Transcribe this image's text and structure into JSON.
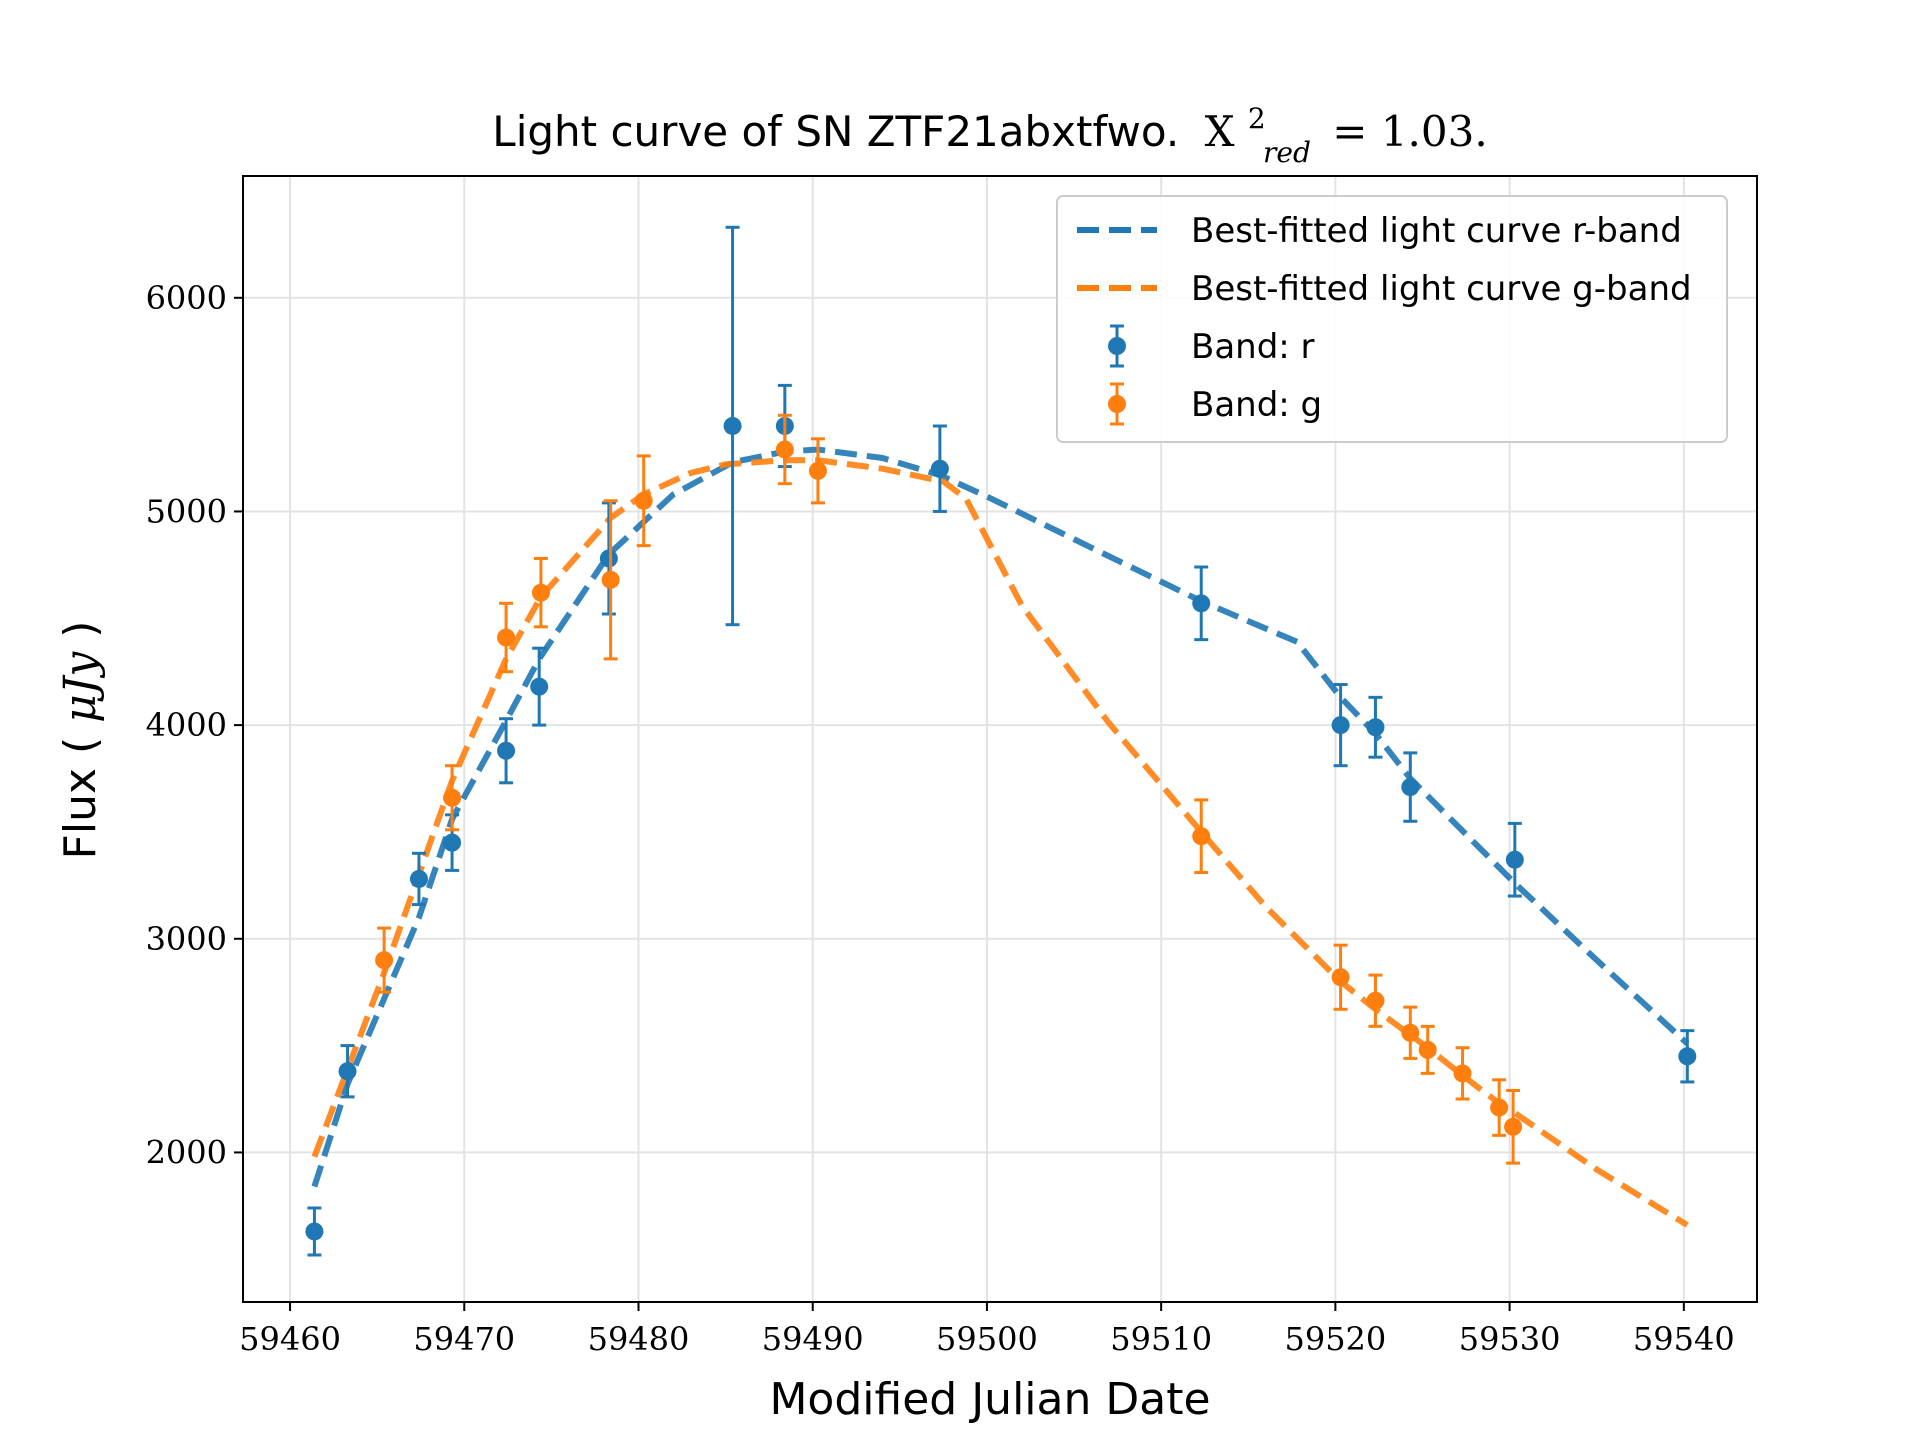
{
  "chart_data": {
    "type": "scatter",
    "title_main": "Light curve of SN ZTF21abxtfwo.",
    "title_chi_symbol": "X",
    "title_chi_sup": "2",
    "title_chi_sub": "red",
    "title_chi_value": "= 1.03.",
    "xlabel": "Modified Julian Date",
    "ylabel_text": "Flux (",
    "ylabel_unit": "μJy",
    "ylabel_close": ")",
    "xlim": [
      59457.3,
      59544.2
    ],
    "ylim": [
      1300,
      6570
    ],
    "xticks": [
      59460,
      59470,
      59480,
      59490,
      59500,
      59510,
      59520,
      59530,
      59540
    ],
    "xtick_labels": [
      "59460",
      "59470",
      "59480",
      "59490",
      "59500",
      "59510",
      "59520",
      "59530",
      "59540"
    ],
    "yticks": [
      2000,
      3000,
      4000,
      5000,
      6000
    ],
    "ytick_labels": [
      "2000",
      "3000",
      "4000",
      "5000",
      "6000"
    ],
    "grid": true,
    "legend_position": "top-right",
    "legend": [
      {
        "label": "Best-fitted light curve r-band",
        "kind": "line",
        "color": "#1f77b4"
      },
      {
        "label": "Best-fitted light curve g-band",
        "kind": "line",
        "color": "#ff7f0e"
      },
      {
        "label": "Band: r",
        "kind": "errorbar",
        "color": "#1f77b4"
      },
      {
        "label": "Band: g",
        "kind": "errorbar",
        "color": "#ff7f0e"
      }
    ],
    "series": [
      {
        "name": "Band: r",
        "kind": "errorbar",
        "color": "#1f77b4",
        "points": [
          {
            "x": 59461.4,
            "y": 1630,
            "err": 110
          },
          {
            "x": 59463.3,
            "y": 2380,
            "err": 120
          },
          {
            "x": 59467.4,
            "y": 3280,
            "err": 120
          },
          {
            "x": 59469.3,
            "y": 3450,
            "err": 130
          },
          {
            "x": 59472.4,
            "y": 3880,
            "err": 150
          },
          {
            "x": 59474.3,
            "y": 4180,
            "err": 180
          },
          {
            "x": 59478.3,
            "y": 4780,
            "err": 260
          },
          {
            "x": 59485.4,
            "y": 5400,
            "err": 930
          },
          {
            "x": 59488.4,
            "y": 5400,
            "err": 190
          },
          {
            "x": 59497.3,
            "y": 5200,
            "err": 200
          },
          {
            "x": 59512.3,
            "y": 4570,
            "err": 170
          },
          {
            "x": 59520.3,
            "y": 4000,
            "err": 190
          },
          {
            "x": 59522.3,
            "y": 3990,
            "err": 140
          },
          {
            "x": 59524.3,
            "y": 3710,
            "err": 160
          },
          {
            "x": 59530.3,
            "y": 3370,
            "err": 170
          },
          {
            "x": 59540.2,
            "y": 2450,
            "err": 120
          }
        ]
      },
      {
        "name": "Band: g",
        "kind": "errorbar",
        "color": "#ff7f0e",
        "points": [
          {
            "x": 59465.4,
            "y": 2900,
            "err": 150
          },
          {
            "x": 59469.3,
            "y": 3660,
            "err": 150
          },
          {
            "x": 59472.4,
            "y": 4410,
            "err": 160
          },
          {
            "x": 59474.4,
            "y": 4620,
            "err": 160
          },
          {
            "x": 59478.4,
            "y": 4680,
            "err": 370
          },
          {
            "x": 59480.3,
            "y": 5050,
            "err": 210
          },
          {
            "x": 59488.4,
            "y": 5290,
            "err": 160
          },
          {
            "x": 59490.3,
            "y": 5190,
            "err": 150
          },
          {
            "x": 59512.3,
            "y": 3480,
            "err": 170
          },
          {
            "x": 59520.3,
            "y": 2820,
            "err": 150
          },
          {
            "x": 59522.3,
            "y": 2710,
            "err": 120
          },
          {
            "x": 59524.3,
            "y": 2560,
            "err": 120
          },
          {
            "x": 59525.3,
            "y": 2480,
            "err": 110
          },
          {
            "x": 59527.3,
            "y": 2370,
            "err": 120
          },
          {
            "x": 59529.4,
            "y": 2210,
            "err": 130
          },
          {
            "x": 59530.2,
            "y": 2120,
            "err": 170
          }
        ]
      },
      {
        "name": "Best-fitted light curve r-band",
        "kind": "line",
        "color": "#1f77b4",
        "x": [
          59461.4,
          59463.3,
          59467.4,
          59469.3,
          59472.4,
          59474.3,
          59478.3,
          59482.0,
          59485.4,
          59488.4,
          59490.3,
          59494.0,
          59497.3,
          59500.0,
          59505.0,
          59512.3,
          59517.8,
          59520.3,
          59522.3,
          59524.3,
          59530.3,
          59535.0,
          59540.2
        ],
        "y": [
          1840,
          2320,
          3100,
          3560,
          4020,
          4310,
          4800,
          5080,
          5230,
          5280,
          5290,
          5250,
          5170,
          5070,
          4870,
          4580,
          4390,
          4130,
          3960,
          3750,
          3260,
          2900,
          2510
        ]
      },
      {
        "name": "Best-fitted light curve g-band",
        "kind": "line",
        "color": "#ff7f0e",
        "x": [
          59461.4,
          59465.4,
          59469.3,
          59472.4,
          59474.4,
          59478.4,
          59480.3,
          59483.0,
          59485.0,
          59488.4,
          59490.3,
          59494.0,
          59497.5,
          59498.8,
          59502.0,
          59507.0,
          59512.3,
          59516.0,
          59520.3,
          59522.3,
          59524.3,
          59525.3,
          59527.3,
          59529.4,
          59530.2,
          59535.0,
          59540.2
        ],
        "y": [
          1980,
          2840,
          3740,
          4310,
          4600,
          4970,
          5080,
          5180,
          5220,
          5240,
          5240,
          5200,
          5140,
          5060,
          4560,
          4010,
          3500,
          3150,
          2800,
          2670,
          2550,
          2490,
          2360,
          2230,
          2190,
          1920,
          1660
        ]
      }
    ]
  }
}
